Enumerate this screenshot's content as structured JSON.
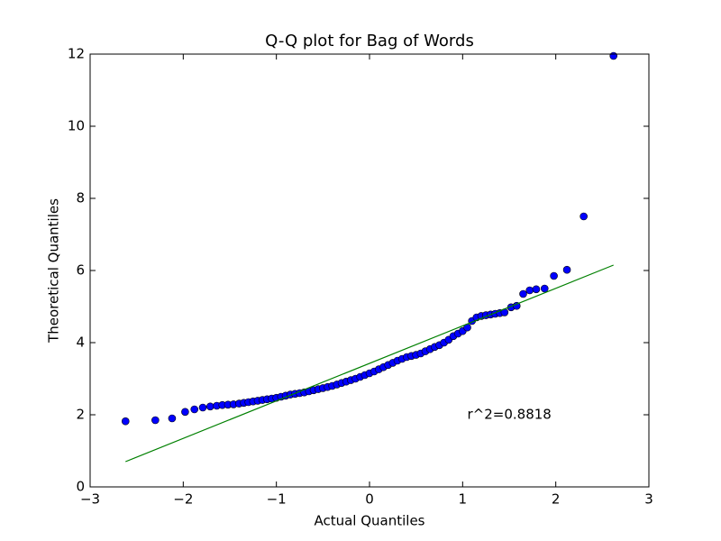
{
  "chart_data": {
    "type": "scatter",
    "title": "Q-Q plot for Bag of Words",
    "x_label": "Actual Quantiles",
    "y_label": "Theoretical Quantiles",
    "xlim": [
      -3,
      3
    ],
    "ylim": [
      0,
      12
    ],
    "xticks": [
      {
        "value": -3,
        "label": "−3"
      },
      {
        "value": -2,
        "label": "−2"
      },
      {
        "value": -1,
        "label": "−1"
      },
      0,
      1,
      2,
      3
    ],
    "yticks": [
      0,
      2,
      4,
      6,
      8,
      10,
      12
    ],
    "grid": false,
    "series": [
      {
        "kind": "points",
        "color": "#0000ff",
        "x": [
          -2.62,
          -2.3,
          -2.12,
          -1.98,
          -1.88,
          -1.79,
          -1.71,
          -1.64,
          -1.58,
          -1.52,
          -1.46,
          -1.4,
          -1.35,
          -1.3,
          -1.25,
          -1.2,
          -1.15,
          -1.1,
          -1.05,
          -1.0,
          -0.95,
          -0.9,
          -0.85,
          -0.8,
          -0.75,
          -0.7,
          -0.65,
          -0.6,
          -0.55,
          -0.5,
          -0.45,
          -0.4,
          -0.35,
          -0.3,
          -0.25,
          -0.2,
          -0.15,
          -0.1,
          -0.05,
          0,
          0.05,
          0.1,
          0.15,
          0.2,
          0.25,
          0.3,
          0.35,
          0.4,
          0.45,
          0.5,
          0.55,
          0.6,
          0.65,
          0.7,
          0.75,
          0.8,
          0.85,
          0.9,
          0.95,
          1.0,
          1.05,
          1.1,
          1.15,
          1.2,
          1.25,
          1.3,
          1.35,
          1.4,
          1.45,
          1.52,
          1.58,
          1.65,
          1.72,
          1.79,
          1.88,
          1.98,
          2.12,
          2.3,
          2.62
        ],
        "values": [
          1.82,
          1.85,
          1.9,
          2.08,
          2.15,
          2.2,
          2.23,
          2.25,
          2.27,
          2.28,
          2.29,
          2.31,
          2.33,
          2.35,
          2.37,
          2.39,
          2.41,
          2.43,
          2.45,
          2.47,
          2.5,
          2.53,
          2.56,
          2.58,
          2.6,
          2.62,
          2.65,
          2.68,
          2.71,
          2.74,
          2.77,
          2.8,
          2.84,
          2.88,
          2.92,
          2.96,
          3.0,
          3.05,
          3.1,
          3.15,
          3.2,
          3.26,
          3.32,
          3.38,
          3.44,
          3.5,
          3.55,
          3.6,
          3.63,
          3.66,
          3.7,
          3.76,
          3.82,
          3.88,
          3.93,
          4.0,
          4.08,
          4.18,
          4.25,
          4.32,
          4.42,
          4.6,
          4.7,
          4.74,
          4.76,
          4.78,
          4.8,
          4.82,
          4.84,
          4.98,
          5.02,
          5.35,
          5.45,
          5.48,
          5.5,
          5.85,
          6.02,
          7.5,
          11.95
        ]
      },
      {
        "kind": "line",
        "color": "#008000",
        "x": [
          -2.62,
          2.62
        ],
        "values": [
          0.7,
          6.15
        ]
      }
    ],
    "annotation": {
      "text": "r^2=0.8818",
      "x": 1.05,
      "y": 2.0
    }
  }
}
